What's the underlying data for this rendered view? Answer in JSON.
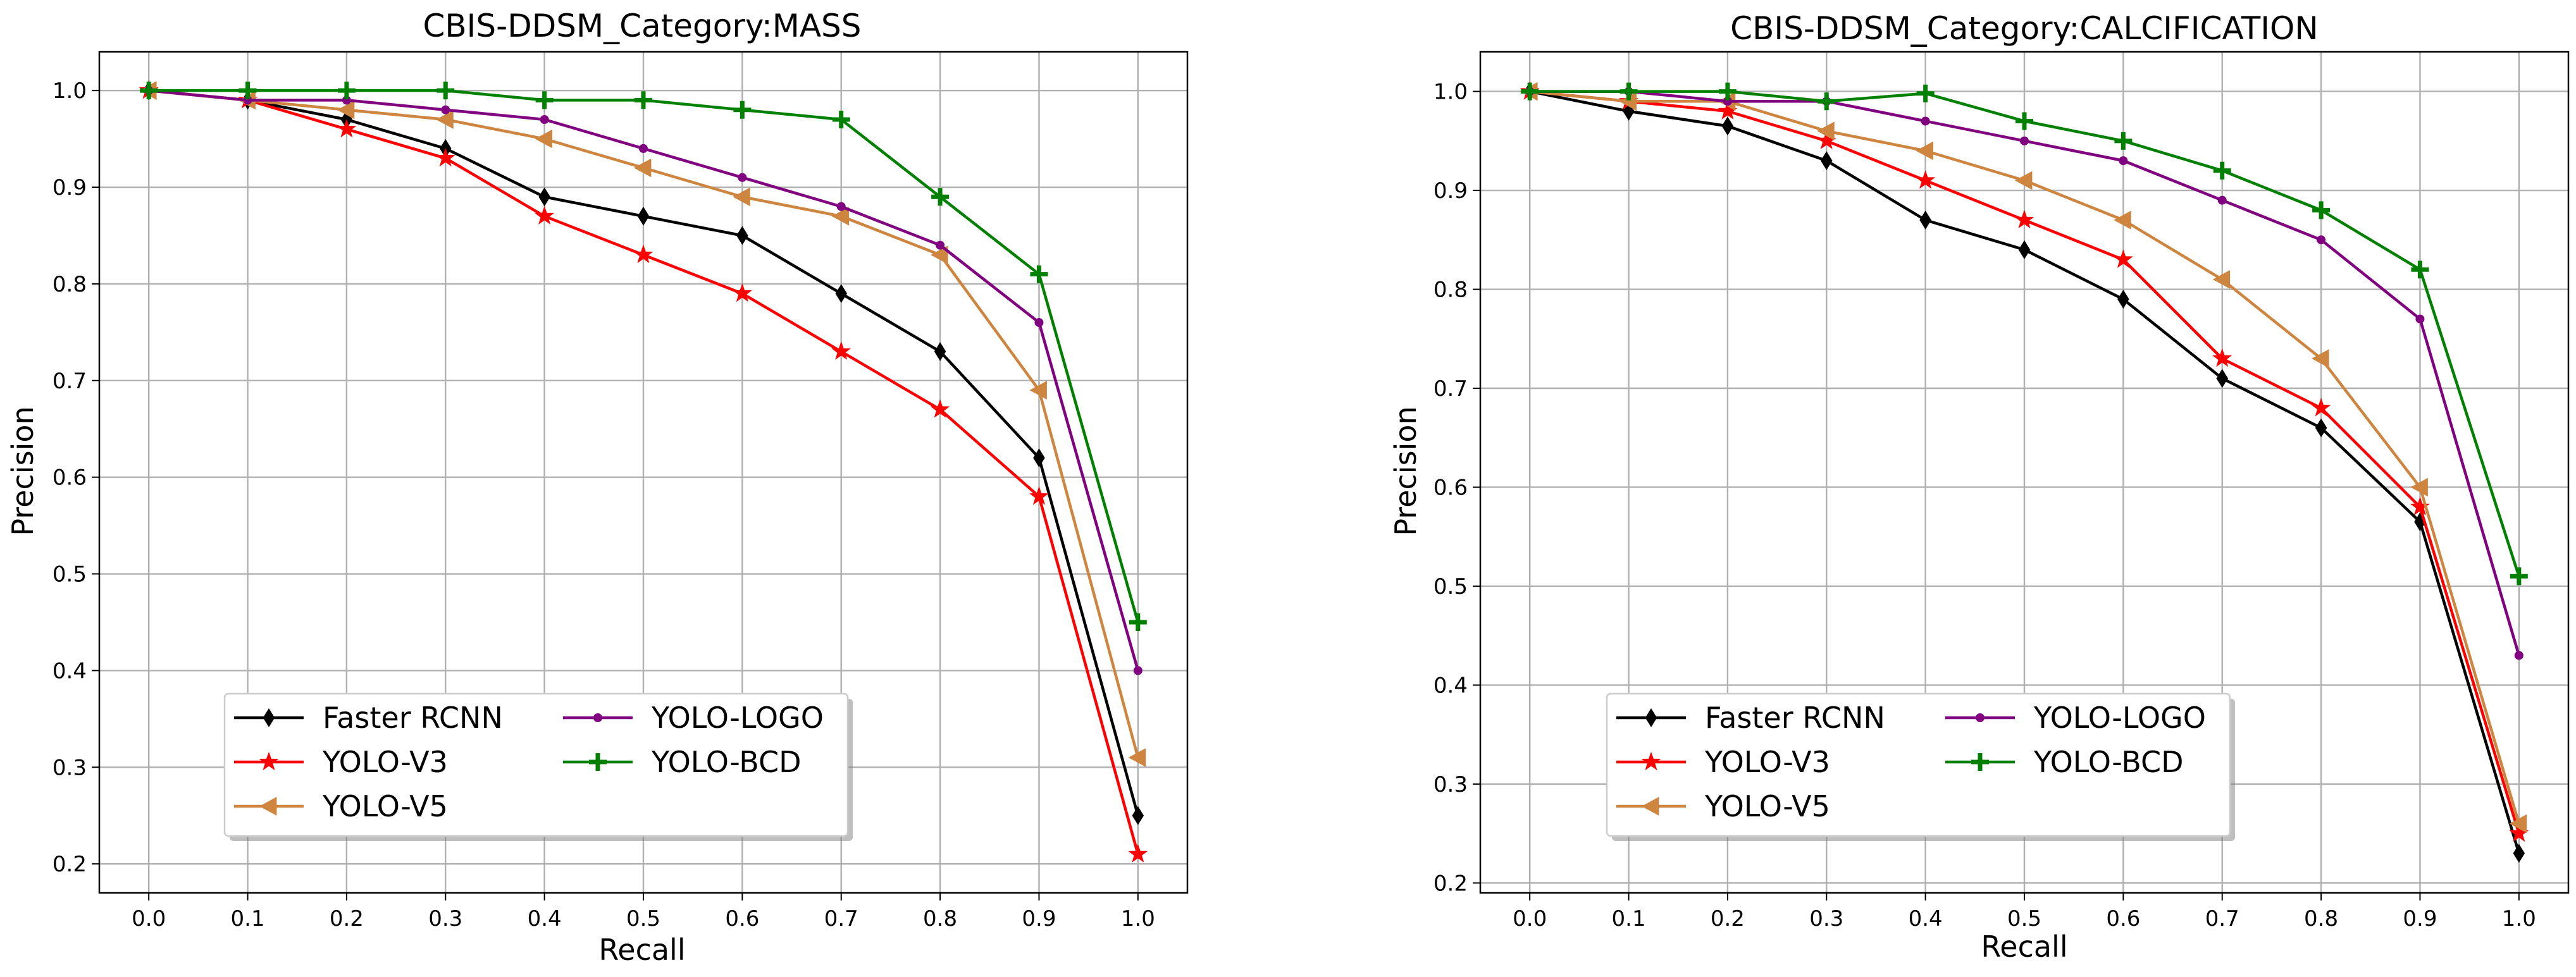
{
  "chart_data": [
    {
      "type": "line",
      "title": "CBIS-DDSM_Category:MASS",
      "xlabel": "Recall",
      "ylabel": "Precision",
      "xlim": [
        -0.05,
        1.05
      ],
      "ylim": [
        0.17,
        1.04
      ],
      "xticks": [
        "0.0",
        "0.1",
        "0.2",
        "0.3",
        "0.4",
        "0.5",
        "0.6",
        "0.7",
        "0.8",
        "0.9",
        "1.0"
      ],
      "yticks": [
        "0.2",
        "0.3",
        "0.4",
        "0.5",
        "0.6",
        "0.7",
        "0.8",
        "0.9",
        "1.0"
      ],
      "grid": true,
      "legend_position": "lower-center",
      "x": [
        0.0,
        0.1,
        0.2,
        0.3,
        0.4,
        0.5,
        0.6,
        0.7,
        0.8,
        0.9,
        1.0
      ],
      "series": [
        {
          "name": "Faster RCNN",
          "color": "#000000",
          "marker": "thin-diamond",
          "values": [
            1.0,
            0.99,
            0.97,
            0.94,
            0.89,
            0.87,
            0.85,
            0.79,
            0.73,
            0.62,
            0.25
          ]
        },
        {
          "name": "YOLO-V3",
          "color": "#ff0000",
          "marker": "star",
          "values": [
            1.0,
            0.99,
            0.96,
            0.93,
            0.87,
            0.83,
            0.79,
            0.73,
            0.67,
            0.58,
            0.21
          ]
        },
        {
          "name": "YOLO-V5",
          "color": "#cd853f",
          "marker": "triangle-left",
          "values": [
            1.0,
            0.99,
            0.98,
            0.97,
            0.95,
            0.92,
            0.89,
            0.87,
            0.83,
            0.69,
            0.31
          ]
        },
        {
          "name": "YOLO-LOGO",
          "color": "#800080",
          "marker": "dot",
          "values": [
            1.0,
            0.99,
            0.99,
            0.98,
            0.97,
            0.94,
            0.91,
            0.88,
            0.84,
            0.76,
            0.4
          ]
        },
        {
          "name": "YOLO-BCD",
          "color": "#008000",
          "marker": "plus",
          "values": [
            1.0,
            1.0,
            1.0,
            1.0,
            0.99,
            0.99,
            0.98,
            0.97,
            0.89,
            0.81,
            0.45
          ]
        }
      ]
    },
    {
      "type": "line",
      "title": "CBIS-DDSM_Category:CALCIFICATION",
      "xlabel": "Recall",
      "ylabel": "Precision",
      "xlim": [
        -0.05,
        1.05
      ],
      "ylim": [
        0.19,
        1.04
      ],
      "xticks": [
        "0.0",
        "0.1",
        "0.2",
        "0.3",
        "0.4",
        "0.5",
        "0.6",
        "0.7",
        "0.8",
        "0.9",
        "1.0"
      ],
      "yticks": [
        "0.2",
        "0.3",
        "0.4",
        "0.5",
        "0.6",
        "0.7",
        "0.8",
        "0.9",
        "1.0"
      ],
      "grid": true,
      "legend_position": "lower-center",
      "x": [
        0.0,
        0.1,
        0.2,
        0.3,
        0.4,
        0.5,
        0.6,
        0.7,
        0.8,
        0.9,
        1.0
      ],
      "series": [
        {
          "name": "Faster RCNN",
          "color": "#000000",
          "marker": "thin-diamond",
          "values": [
            1.0,
            0.98,
            0.965,
            0.93,
            0.87,
            0.84,
            0.79,
            0.71,
            0.66,
            0.565,
            0.23
          ]
        },
        {
          "name": "YOLO-V3",
          "color": "#ff0000",
          "marker": "star",
          "values": [
            1.0,
            0.99,
            0.98,
            0.95,
            0.91,
            0.87,
            0.83,
            0.73,
            0.68,
            0.58,
            0.25
          ]
        },
        {
          "name": "YOLO-V5",
          "color": "#cd853f",
          "marker": "triangle-left",
          "values": [
            1.0,
            0.99,
            0.99,
            0.96,
            0.94,
            0.91,
            0.87,
            0.81,
            0.73,
            0.6,
            0.26
          ]
        },
        {
          "name": "YOLO-LOGO",
          "color": "#800080",
          "marker": "dot",
          "values": [
            1.0,
            1.0,
            0.99,
            0.99,
            0.97,
            0.95,
            0.93,
            0.89,
            0.85,
            0.77,
            0.43
          ]
        },
        {
          "name": "YOLO-BCD",
          "color": "#008000",
          "marker": "plus",
          "values": [
            1.0,
            1.0,
            1.0,
            0.99,
            0.998,
            0.97,
            0.95,
            0.92,
            0.88,
            0.82,
            0.51
          ]
        }
      ]
    }
  ]
}
